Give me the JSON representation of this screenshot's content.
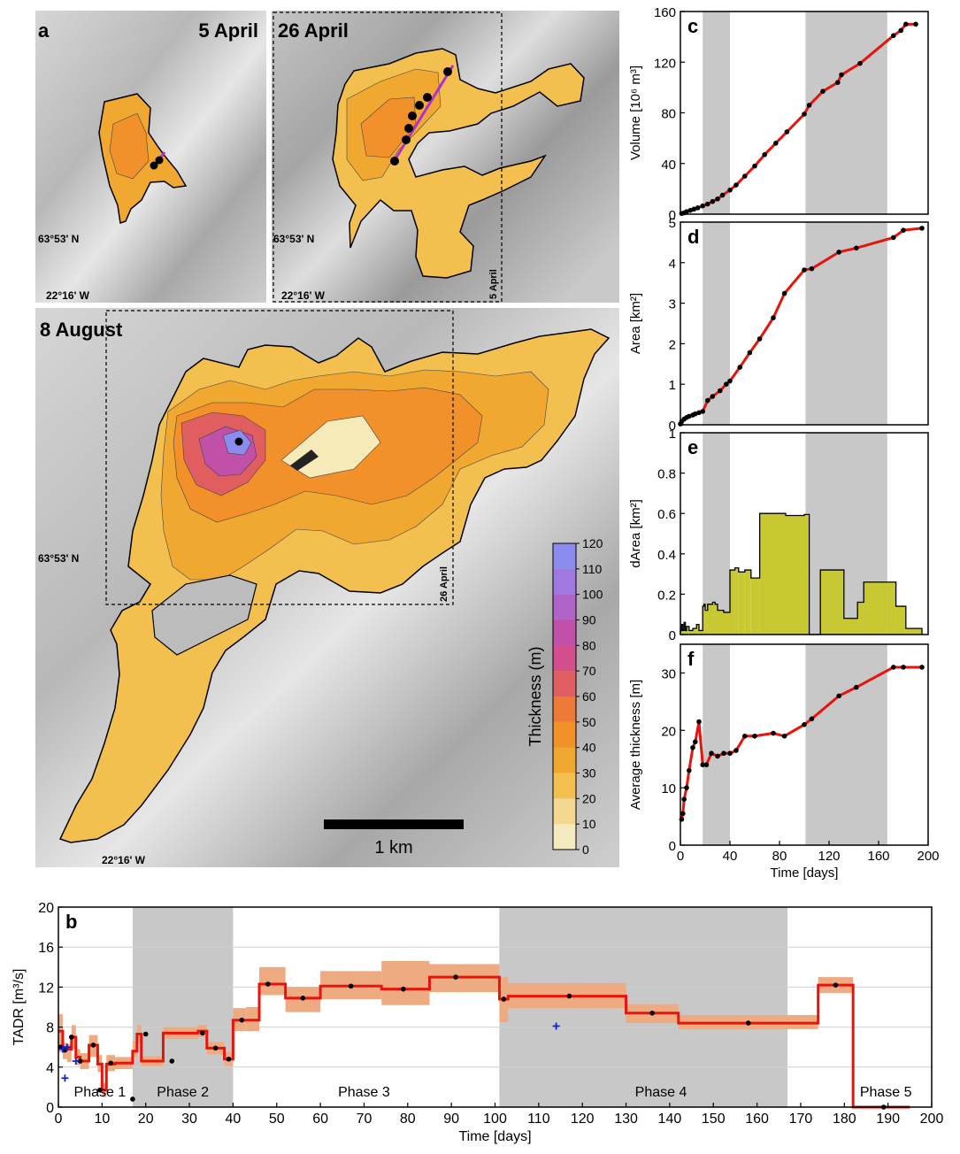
{
  "colors": {
    "lava_line": "#e8140c",
    "grey_band": "#c8c8c8",
    "darea_fill": "#c8c830",
    "tadr_band": "#eeaa80",
    "marker": "#000000",
    "vent_line": "#b030d0",
    "blue_plus": "#1020d0"
  },
  "maps": {
    "a": {
      "letter": "a",
      "date": "5 April",
      "lat": "63°53' N",
      "lon": "22°16' W"
    },
    "b26": {
      "date": "26 April",
      "lat": "63°53' N",
      "lon": "22°16' W",
      "inset_label": "5 April"
    },
    "aug": {
      "date": "8 August",
      "lat": "63°53' N",
      "lon": "22°16' W",
      "inset_label": "26 April"
    },
    "scale_label": "1 km",
    "colorbar": {
      "title": "Thickness (m)",
      "ticks": [
        "120",
        "110",
        "100",
        "90",
        "80",
        "70",
        "60",
        "50",
        "40",
        "30",
        "20",
        "10",
        "0"
      ],
      "colors": [
        "#8c8cf0",
        "#9f78e0",
        "#b064c8",
        "#c050a8",
        "#d24e8c",
        "#e05e60",
        "#ee7a38",
        "#f2902a",
        "#f0a830",
        "#f3c050",
        "#f5d890",
        "#f4eac0",
        "#f6f2dc"
      ]
    }
  },
  "chart_data": [
    {
      "id": "c",
      "letter": "c",
      "type": "line",
      "ylabel": "Volume [10⁶ m³]",
      "xlim": [
        0,
        200
      ],
      "ylim": [
        0,
        160
      ],
      "yticks": [
        "0",
        "40",
        "80",
        "120",
        "160"
      ],
      "ytick_values": [
        0,
        40,
        80,
        120,
        160
      ],
      "shaded": [
        [
          18,
          40
        ],
        [
          101,
          167
        ]
      ],
      "x": [
        1,
        3,
        5,
        8,
        11,
        14,
        18,
        22,
        26,
        30,
        34,
        40,
        45,
        52,
        60,
        68,
        77,
        86,
        100,
        104,
        115,
        127,
        130,
        145,
        172,
        178,
        182,
        190
      ],
      "y": [
        0.5,
        1,
        2,
        3,
        4,
        5,
        6.5,
        8,
        10,
        12,
        15,
        19,
        23,
        30,
        38,
        47,
        56,
        65,
        79,
        86,
        97,
        104,
        110,
        119,
        141,
        145,
        150,
        150
      ]
    },
    {
      "id": "d",
      "letter": "d",
      "type": "line",
      "ylabel": "Area [km²]",
      "xlim": [
        0,
        200
      ],
      "ylim": [
        0,
        5
      ],
      "yticks": [
        "0",
        "1",
        "2",
        "3",
        "4",
        "5"
      ],
      "ytick_values": [
        0,
        1,
        2,
        3,
        4,
        5
      ],
      "shaded": [
        [
          18,
          40
        ],
        [
          101,
          167
        ]
      ],
      "x": [
        0,
        1,
        3,
        5,
        7,
        10,
        12,
        15,
        18,
        22,
        26,
        32,
        37,
        40,
        48,
        56,
        64,
        75,
        84,
        100,
        106,
        128,
        142,
        172,
        180,
        195
      ],
      "y": [
        0.02,
        0.08,
        0.14,
        0.18,
        0.21,
        0.24,
        0.27,
        0.3,
        0.33,
        0.6,
        0.7,
        0.84,
        1,
        1.08,
        1.42,
        1.78,
        2.12,
        2.64,
        3.24,
        3.82,
        3.85,
        4.26,
        4.36,
        4.62,
        4.8,
        4.85
      ]
    },
    {
      "id": "e",
      "letter": "e",
      "type": "bar",
      "ylabel": "dArea [km²]",
      "xlim": [
        0,
        200
      ],
      "ylim": [
        0,
        1
      ],
      "yticks": [
        "0",
        "0.2",
        "0.4",
        "0.6",
        "0.8",
        "1"
      ],
      "ytick_values": [
        0,
        0.2,
        0.4,
        0.6,
        0.8,
        1
      ],
      "shaded": [
        [
          18,
          40
        ],
        [
          101,
          167
        ]
      ],
      "steps_x": [
        0,
        1,
        2,
        3,
        4,
        5,
        7,
        10,
        13,
        15,
        18,
        19,
        20,
        22,
        26,
        28,
        30,
        35,
        40,
        44,
        47,
        52,
        57,
        60,
        64,
        70,
        80,
        85,
        100,
        104,
        113,
        118,
        127,
        132,
        140,
        143,
        148,
        152,
        156,
        167,
        174,
        182,
        195
      ],
      "steps_y": [
        0.02,
        0.05,
        0.02,
        0.06,
        0.02,
        0.04,
        0.02,
        0.03,
        0.05,
        0.02,
        0.14,
        0.15,
        0.12,
        0.15,
        0.16,
        0.15,
        0.12,
        0.11,
        0.32,
        0.33,
        0.31,
        0.32,
        0.28,
        0.28,
        0.6,
        0.6,
        0.6,
        0.59,
        0.595,
        0,
        0.32,
        0.32,
        0.32,
        0.08,
        0.08,
        0.16,
        0.26,
        0.26,
        0.26,
        0.26,
        0.14,
        0.03,
        0.03
      ]
    },
    {
      "id": "f",
      "letter": "f",
      "type": "line",
      "ylabel": "Average thickness [m]",
      "xlabel": "Time [days]",
      "xlim": [
        0,
        200
      ],
      "ylim": [
        0,
        35
      ],
      "yticks": [
        "0",
        "10",
        "20",
        "30"
      ],
      "ytick_values": [
        0,
        10,
        20,
        30
      ],
      "xticks": [
        "0",
        "40",
        "80",
        "120",
        "160",
        "200"
      ],
      "xtick_values": [
        0,
        40,
        80,
        120,
        160,
        200
      ],
      "shaded": [
        [
          18,
          40
        ],
        [
          101,
          167
        ]
      ],
      "x": [
        1,
        2,
        3,
        5,
        7,
        10,
        12,
        15,
        18,
        21,
        25,
        30,
        35,
        40,
        45,
        52,
        60,
        75,
        84,
        100,
        106,
        128,
        142,
        172,
        180,
        195
      ],
      "y": [
        4.5,
        5.5,
        8,
        10,
        13,
        17,
        18,
        21.5,
        14,
        14,
        16,
        15.5,
        16,
        16,
        16.5,
        19,
        19,
        19.5,
        19,
        21,
        22,
        26,
        27.5,
        31,
        31,
        31
      ]
    },
    {
      "id": "b",
      "letter": "b",
      "type": "line",
      "ylabel": "TADR [m³/s]",
      "xlabel": "Time [days]",
      "xlim": [
        0,
        200
      ],
      "ylim": [
        0,
        20
      ],
      "yticks": [
        "0",
        "4",
        "8",
        "12",
        "16",
        "20"
      ],
      "ytick_values": [
        0,
        4,
        8,
        12,
        16,
        20
      ],
      "xticks": [
        "0",
        "10",
        "20",
        "30",
        "40",
        "50",
        "60",
        "70",
        "80",
        "90",
        "100",
        "110",
        "120",
        "130",
        "140",
        "150",
        "160",
        "170",
        "180",
        "190",
        "200"
      ],
      "xtick_values": [
        0,
        10,
        20,
        30,
        40,
        50,
        60,
        70,
        80,
        90,
        100,
        110,
        120,
        130,
        140,
        150,
        160,
        170,
        180,
        190,
        200
      ],
      "shaded": [
        [
          17,
          40
        ],
        [
          101,
          167
        ]
      ],
      "phases": [
        {
          "label": "Phase 1",
          "x": 9.5
        },
        {
          "label": "Phase 2",
          "x": 28.5
        },
        {
          "label": "Phase 3",
          "x": 70
        },
        {
          "label": "Phase 4",
          "x": 138
        },
        {
          "label": "Phase 5",
          "x": 189.5
        }
      ],
      "step_x": [
        0,
        1,
        2,
        3,
        4,
        5,
        7,
        9,
        10,
        11,
        13,
        17,
        18,
        19,
        22,
        24,
        32,
        34,
        38,
        40,
        43,
        46,
        52,
        60,
        74,
        85,
        101,
        103,
        130,
        142,
        174,
        182,
        195
      ],
      "step_y": [
        7.6,
        5.8,
        5.8,
        7.0,
        5.0,
        4.6,
        6.2,
        4.3,
        1.7,
        4.3,
        4.4,
        5.6,
        7.3,
        4.6,
        4.6,
        7.4,
        7.6,
        5.9,
        4.8,
        8.7,
        8.7,
        12.3,
        10.9,
        12.1,
        11.8,
        13.0,
        10.8,
        11.1,
        9.4,
        8.4,
        12.2,
        0,
        0
      ],
      "band_lo": [
        5.5,
        4.8,
        4.5,
        5.8,
        4.2,
        3.8,
        5.0,
        3.5,
        1.0,
        3.6,
        3.8,
        5.0,
        6.5,
        4.1,
        4.1,
        6.8,
        7.0,
        5.3,
        4.1,
        7.6,
        7.6,
        11.2,
        9.5,
        10.8,
        10.2,
        11.5,
        8.5,
        9.9,
        8.4,
        7.8,
        11.4,
        0,
        0
      ],
      "band_hi": [
        9.3,
        6.4,
        6.3,
        8.2,
        5.8,
        5.4,
        7.2,
        5.2,
        2.4,
        5.2,
        5.0,
        6.6,
        8.2,
        5.1,
        5.1,
        8.0,
        8.2,
        6.5,
        5.5,
        9.9,
        10.0,
        14.0,
        12.0,
        13.6,
        14.6,
        14.3,
        13.0,
        12.4,
        10.3,
        9.2,
        13.0,
        0,
        0
      ],
      "points_x": [
        0.5,
        1.5,
        3,
        5,
        8,
        9.5,
        12,
        17,
        20,
        26,
        33,
        36,
        39,
        42,
        48,
        56,
        67,
        79,
        91,
        102,
        117,
        136,
        158,
        178,
        189
      ],
      "points_y": [
        6.0,
        5.7,
        7.0,
        4.6,
        6.2,
        1.7,
        4.4,
        0.8,
        7.3,
        4.6,
        7.4,
        5.9,
        4.8,
        8.7,
        12.3,
        10.9,
        12.1,
        11.8,
        13.0,
        10.8,
        11.1,
        9.4,
        8.4,
        12.2,
        0
      ],
      "plus_x": [
        1.0,
        2.0,
        1.5,
        4.0,
        114
      ],
      "plus_y": [
        5.8,
        6.0,
        2.9,
        4.6,
        8.1
      ]
    }
  ]
}
